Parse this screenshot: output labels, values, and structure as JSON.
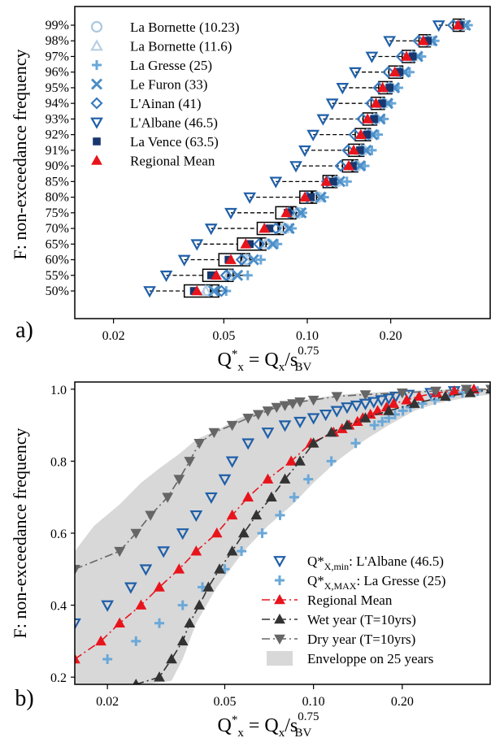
{
  "chart_data": [
    {
      "type": "boxplot",
      "panel_label": "a)",
      "ylabel": "F: non-exceedance frequency",
      "xlabel": {
        "main": "Q",
        "sup": "*",
        "sub": "x",
        "rest": " = Q",
        "rest_sub": "x",
        "slash": "/s",
        "exp_sup": "0.75",
        "exp_sub": "BV"
      },
      "x_scale": "log",
      "xlim": [
        0.0145,
        0.46
      ],
      "x_ticks": [
        0.02,
        0.05,
        0.1,
        0.2
      ],
      "x_tick_labels": [
        "0.02",
        "0.05",
        "0.10",
        "0.20"
      ],
      "y_categories": [
        "50%",
        "55%",
        "60%",
        "65%",
        "70%",
        "75%",
        "80%",
        "85%",
        "90%",
        "91%",
        "92%",
        "93%",
        "94%",
        "95%",
        "96%",
        "97%",
        "98%",
        "99%"
      ],
      "legend_position": "top-left",
      "series": [
        {
          "name": "La Bornette (10.23)",
          "marker": "circle-open",
          "color": "#aac8e0",
          "values": [
            0.044,
            0.053,
            0.061,
            0.072,
            0.083,
            0.093,
            0.109,
            0.127,
            0.15,
            0.158,
            0.166,
            0.176,
            0.188,
            0.199,
            0.215,
            0.24,
            0.275,
            0.365
          ]
        },
        {
          "name": "La Bornette (11.6)",
          "marker": "triangle-open",
          "color": "#b7cfe3",
          "values": [
            0.043,
            0.052,
            0.06,
            0.071,
            0.082,
            0.092,
            0.108,
            0.126,
            0.148,
            0.156,
            0.164,
            0.174,
            0.186,
            0.197,
            0.213,
            0.238,
            0.273,
            0.362
          ]
        },
        {
          "name": "La Gresse (25)",
          "marker": "plus",
          "color": "#6aa8d8",
          "values": [
            0.051,
            0.061,
            0.068,
            0.078,
            0.088,
            0.096,
            0.115,
            0.139,
            0.161,
            0.171,
            0.18,
            0.189,
            0.201,
            0.213,
            0.234,
            0.258,
            0.288,
            0.38
          ]
        },
        {
          "name": "Le Furon (33)",
          "marker": "x",
          "color": "#4b8ec8",
          "values": [
            0.046,
            0.056,
            0.064,
            0.075,
            0.086,
            0.095,
            0.112,
            0.131,
            0.155,
            0.163,
            0.172,
            0.183,
            0.195,
            0.206,
            0.224,
            0.25,
            0.282,
            0.372
          ]
        },
        {
          "name": "L'Ainan (41)",
          "marker": "diamond-open",
          "color": "#3a7bbf",
          "values": [
            0.049,
            0.051,
            0.058,
            0.067,
            0.077,
            0.086,
            0.1,
            0.118,
            0.132,
            0.14,
            0.148,
            0.158,
            0.17,
            0.181,
            0.196,
            0.219,
            0.252,
            0.336
          ]
        },
        {
          "name": "L'Albane (46.5)",
          "marker": "triangle-down-open",
          "color": "#1f5fa8",
          "values": [
            0.027,
            0.031,
            0.036,
            0.04,
            0.045,
            0.053,
            0.062,
            0.077,
            0.091,
            0.098,
            0.105,
            0.114,
            0.123,
            0.134,
            0.149,
            0.171,
            0.198,
            0.298
          ]
        },
        {
          "name": "La Vence (63.5)",
          "marker": "square-filled",
          "color": "#17376e",
          "values": [
            0.039,
            0.045,
            0.052,
            0.062,
            0.073,
            0.085,
            0.103,
            0.124,
            0.146,
            0.155,
            0.164,
            0.174,
            0.186,
            0.198,
            0.215,
            0.24,
            0.272,
            0.355
          ]
        },
        {
          "name": "Regional Mean",
          "marker": "triangle-filled",
          "color": "#e8141c",
          "values": [
            0.04,
            0.047,
            0.053,
            0.06,
            0.07,
            0.084,
            0.098,
            0.117,
            0.141,
            0.147,
            0.156,
            0.165,
            0.177,
            0.187,
            0.207,
            0.228,
            0.262,
            0.35
          ]
        }
      ],
      "boxes": [
        {
          "q1": 0.036,
          "median": 0.045,
          "q3": 0.048,
          "whisker_low": 0.027,
          "whisker_high": 0.051
        },
        {
          "q1": 0.042,
          "median": 0.052,
          "q3": 0.054,
          "whisker_low": 0.031,
          "whisker_high": 0.061
        },
        {
          "q1": 0.048,
          "median": 0.058,
          "q3": 0.062,
          "whisker_low": 0.036,
          "whisker_high": 0.068
        },
        {
          "q1": 0.056,
          "median": 0.068,
          "q3": 0.071,
          "whisker_low": 0.04,
          "whisker_high": 0.078
        },
        {
          "q1": 0.066,
          "median": 0.079,
          "q3": 0.082,
          "whisker_low": 0.045,
          "whisker_high": 0.088
        },
        {
          "q1": 0.077,
          "median": 0.088,
          "q3": 0.091,
          "whisker_low": 0.053,
          "whisker_high": 0.096
        },
        {
          "q1": 0.094,
          "median": 0.104,
          "q3": 0.108,
          "whisker_low": 0.062,
          "whisker_high": 0.115
        },
        {
          "q1": 0.114,
          "median": 0.124,
          "q3": 0.128,
          "whisker_low": 0.077,
          "whisker_high": 0.139
        },
        {
          "q1": 0.134,
          "median": 0.146,
          "q3": 0.152,
          "whisker_low": 0.091,
          "whisker_high": 0.161
        },
        {
          "q1": 0.141,
          "median": 0.155,
          "q3": 0.16,
          "whisker_low": 0.098,
          "whisker_high": 0.171
        },
        {
          "q1": 0.149,
          "median": 0.163,
          "q3": 0.169,
          "whisker_low": 0.105,
          "whisker_high": 0.18
        },
        {
          "q1": 0.159,
          "median": 0.173,
          "q3": 0.178,
          "whisker_low": 0.114,
          "whisker_high": 0.189
        },
        {
          "q1": 0.17,
          "median": 0.185,
          "q3": 0.19,
          "whisker_low": 0.123,
          "whisker_high": 0.201
        },
        {
          "q1": 0.181,
          "median": 0.196,
          "q3": 0.202,
          "whisker_low": 0.134,
          "whisker_high": 0.213
        },
        {
          "q1": 0.197,
          "median": 0.214,
          "q3": 0.221,
          "whisker_low": 0.149,
          "whisker_high": 0.234
        },
        {
          "q1": 0.22,
          "median": 0.238,
          "q3": 0.244,
          "whisker_low": 0.171,
          "whisker_high": 0.258
        },
        {
          "q1": 0.253,
          "median": 0.272,
          "q3": 0.278,
          "whisker_low": 0.198,
          "whisker_high": 0.288
        },
        {
          "q1": 0.336,
          "median": 0.358,
          "q3": 0.368,
          "whisker_low": 0.298,
          "whisker_high": 0.38
        }
      ]
    },
    {
      "type": "scatter",
      "panel_label": "b)",
      "ylabel": "F: non-exceedance frequency",
      "xlabel": {
        "main": "Q",
        "sup": "*",
        "sub": "x",
        "rest": " = Q",
        "rest_sub": "x",
        "slash": "/s",
        "exp_sup": "0.75",
        "exp_sub": "BV"
      },
      "x_scale": "log",
      "xlim": [
        0.0155,
        0.4
      ],
      "ylim": [
        0.18,
        1.02
      ],
      "x_ticks": [
        0.02,
        0.05,
        0.1,
        0.2
      ],
      "x_tick_labels": [
        "0.02",
        "0.05",
        "0.10",
        "0.20"
      ],
      "y_ticks": [
        0.2,
        0.4,
        0.6,
        0.8,
        1.0
      ],
      "y_tick_labels": [
        "0.2",
        "0.4",
        "0.6",
        "0.8",
        "1.0"
      ],
      "legend_position": "bottom-right",
      "envelope": {
        "name": "Enveloppe on 25 years",
        "color": "#d8d8d8",
        "lower": {
          "x": [
            0.0155,
            0.027,
            0.033,
            0.036,
            0.04,
            0.047,
            0.058,
            0.07,
            0.085,
            0.1,
            0.12,
            0.15,
            0.18,
            0.22,
            0.26,
            0.3,
            0.35,
            0.4
          ],
          "y": [
            0.18,
            0.18,
            0.19,
            0.25,
            0.35,
            0.45,
            0.55,
            0.62,
            0.68,
            0.74,
            0.8,
            0.86,
            0.9,
            0.94,
            0.96,
            0.97,
            0.98,
            0.985
          ]
        },
        "upper": {
          "x": [
            0.0155,
            0.018,
            0.022,
            0.026,
            0.03,
            0.035,
            0.04,
            0.048,
            0.056,
            0.066,
            0.08,
            0.1,
            0.125,
            0.15,
            0.2,
            0.26,
            0.32,
            0.4
          ],
          "y": [
            0.55,
            0.62,
            0.68,
            0.74,
            0.78,
            0.82,
            0.86,
            0.89,
            0.92,
            0.94,
            0.96,
            0.975,
            0.985,
            0.99,
            0.995,
            0.998,
            1.0,
            1.0
          ]
        }
      },
      "series": [
        {
          "name": "Q*X,min: L'Albane (46.5)",
          "legend": {
            "pre": "Q*",
            "sub": "X,min",
            "post": ": L'Albane (46.5)"
          },
          "marker": "triangle-down-open",
          "color": "#1f5fa8",
          "x": [
            0.0155,
            0.02,
            0.024,
            0.027,
            0.031,
            0.036,
            0.04,
            0.045,
            0.05,
            0.053,
            0.06,
            0.07,
            0.08,
            0.09,
            0.1,
            0.11,
            0.12,
            0.13,
            0.14,
            0.15,
            0.16,
            0.17,
            0.18,
            0.19,
            0.21,
            0.25,
            0.3
          ],
          "y": [
            0.35,
            0.4,
            0.45,
            0.5,
            0.55,
            0.6,
            0.65,
            0.7,
            0.75,
            0.8,
            0.85,
            0.88,
            0.9,
            0.91,
            0.92,
            0.93,
            0.94,
            0.95,
            0.955,
            0.96,
            0.965,
            0.97,
            0.975,
            0.98,
            0.985,
            0.99,
            0.995
          ]
        },
        {
          "name": "Q*X,MAX: La Gresse (25)",
          "legend": {
            "pre": "Q*",
            "sub": "X,MAX",
            "post": ": La Gresse (25)"
          },
          "marker": "plus",
          "color": "#6aa8d8",
          "x": [
            0.02,
            0.025,
            0.03,
            0.036,
            0.042,
            0.05,
            0.057,
            0.067,
            0.077,
            0.086,
            0.096,
            0.115,
            0.139,
            0.161,
            0.171,
            0.18,
            0.189,
            0.201,
            0.213,
            0.234,
            0.258,
            0.288,
            0.32,
            0.36
          ],
          "y": [
            0.25,
            0.3,
            0.35,
            0.4,
            0.45,
            0.5,
            0.55,
            0.6,
            0.65,
            0.7,
            0.75,
            0.8,
            0.85,
            0.9,
            0.91,
            0.92,
            0.93,
            0.94,
            0.95,
            0.96,
            0.97,
            0.98,
            0.99,
            0.995
          ]
        },
        {
          "name": "Regional Mean",
          "legend": {
            "pre": "Regional Mean",
            "sub": "",
            "post": ""
          },
          "marker": "triangle-filled",
          "color": "#e8141c",
          "line": "dashdot",
          "x": [
            0.0155,
            0.019,
            0.022,
            0.026,
            0.03,
            0.035,
            0.04,
            0.047,
            0.053,
            0.06,
            0.07,
            0.084,
            0.098,
            0.117,
            0.125,
            0.132,
            0.141,
            0.147,
            0.156,
            0.165,
            0.177,
            0.187,
            0.207,
            0.228,
            0.262,
            0.3,
            0.35
          ],
          "y": [
            0.25,
            0.3,
            0.35,
            0.4,
            0.45,
            0.5,
            0.55,
            0.6,
            0.65,
            0.7,
            0.75,
            0.8,
            0.85,
            0.88,
            0.89,
            0.9,
            0.91,
            0.92,
            0.93,
            0.94,
            0.95,
            0.96,
            0.97,
            0.98,
            0.99,
            0.995,
            1.0
          ]
        },
        {
          "name": "Wet year (T=10yrs)",
          "legend": {
            "pre": "Wet year (T=10yrs)",
            "sub": "",
            "post": ""
          },
          "marker": "triangle-filled",
          "color": "#333333",
          "line": "dashdot",
          "x": [
            0.025,
            0.03,
            0.033,
            0.036,
            0.038,
            0.041,
            0.044,
            0.048,
            0.053,
            0.058,
            0.064,
            0.072,
            0.08,
            0.09,
            0.1,
            0.115,
            0.13,
            0.15,
            0.18,
            0.22,
            0.28,
            0.34,
            0.4
          ],
          "y": [
            0.18,
            0.2,
            0.25,
            0.3,
            0.35,
            0.4,
            0.45,
            0.5,
            0.55,
            0.6,
            0.65,
            0.7,
            0.75,
            0.8,
            0.85,
            0.88,
            0.9,
            0.92,
            0.94,
            0.96,
            0.98,
            0.99,
            1.0
          ]
        },
        {
          "name": "Dry year (T=10yrs)",
          "legend": {
            "pre": "Dry year (T=10yrs)",
            "sub": "",
            "post": ""
          },
          "marker": "triangle-down-filled",
          "color": "#666666",
          "line": "dashdot",
          "x": [
            0.0155,
            0.022,
            0.025,
            0.028,
            0.032,
            0.035,
            0.038,
            0.041,
            0.046,
            0.053,
            0.06,
            0.065,
            0.07,
            0.075,
            0.08,
            0.085,
            0.09,
            0.1,
            0.12,
            0.15,
            0.2,
            0.26,
            0.33,
            0.4
          ],
          "y": [
            0.5,
            0.55,
            0.6,
            0.65,
            0.7,
            0.75,
            0.8,
            0.85,
            0.88,
            0.9,
            0.92,
            0.93,
            0.94,
            0.95,
            0.955,
            0.96,
            0.965,
            0.97,
            0.98,
            0.985,
            0.99,
            0.995,
            1.0,
            1.0
          ]
        }
      ],
      "envelope_legend": "Enveloppe on 25 years"
    }
  ]
}
